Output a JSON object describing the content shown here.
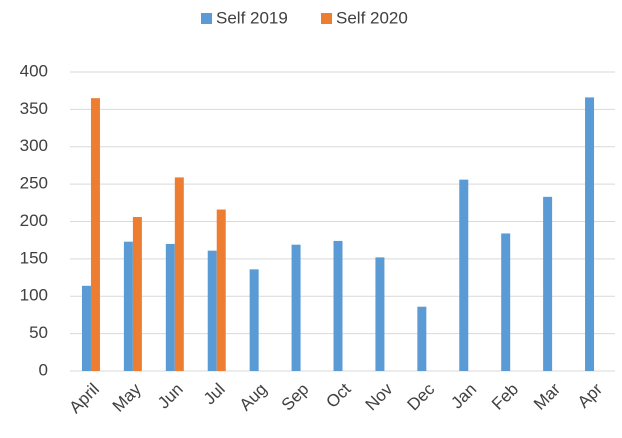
{
  "chart_data": {
    "type": "bar",
    "categories": [
      "April",
      "May",
      "Jun",
      "Jul",
      "Aug",
      "Sep",
      "Oct",
      "Nov",
      "Dec",
      "Jan",
      "Feb",
      "Mar",
      "Apr"
    ],
    "series": [
      {
        "name": "Self 2019",
        "color": "#5b9bd5",
        "values": [
          114,
          173,
          170,
          161,
          136,
          169,
          174,
          152,
          86,
          256,
          184,
          233,
          366
        ]
      },
      {
        "name": "Self 2020",
        "color": "#ed7d31",
        "values": [
          365,
          206,
          259,
          216,
          null,
          null,
          null,
          null,
          null,
          null,
          null,
          null,
          null
        ]
      }
    ],
    "ylim": [
      0,
      400
    ],
    "yticks": [
      0,
      50,
      100,
      150,
      200,
      250,
      300,
      350,
      400
    ],
    "grid": true,
    "legend": "top"
  }
}
